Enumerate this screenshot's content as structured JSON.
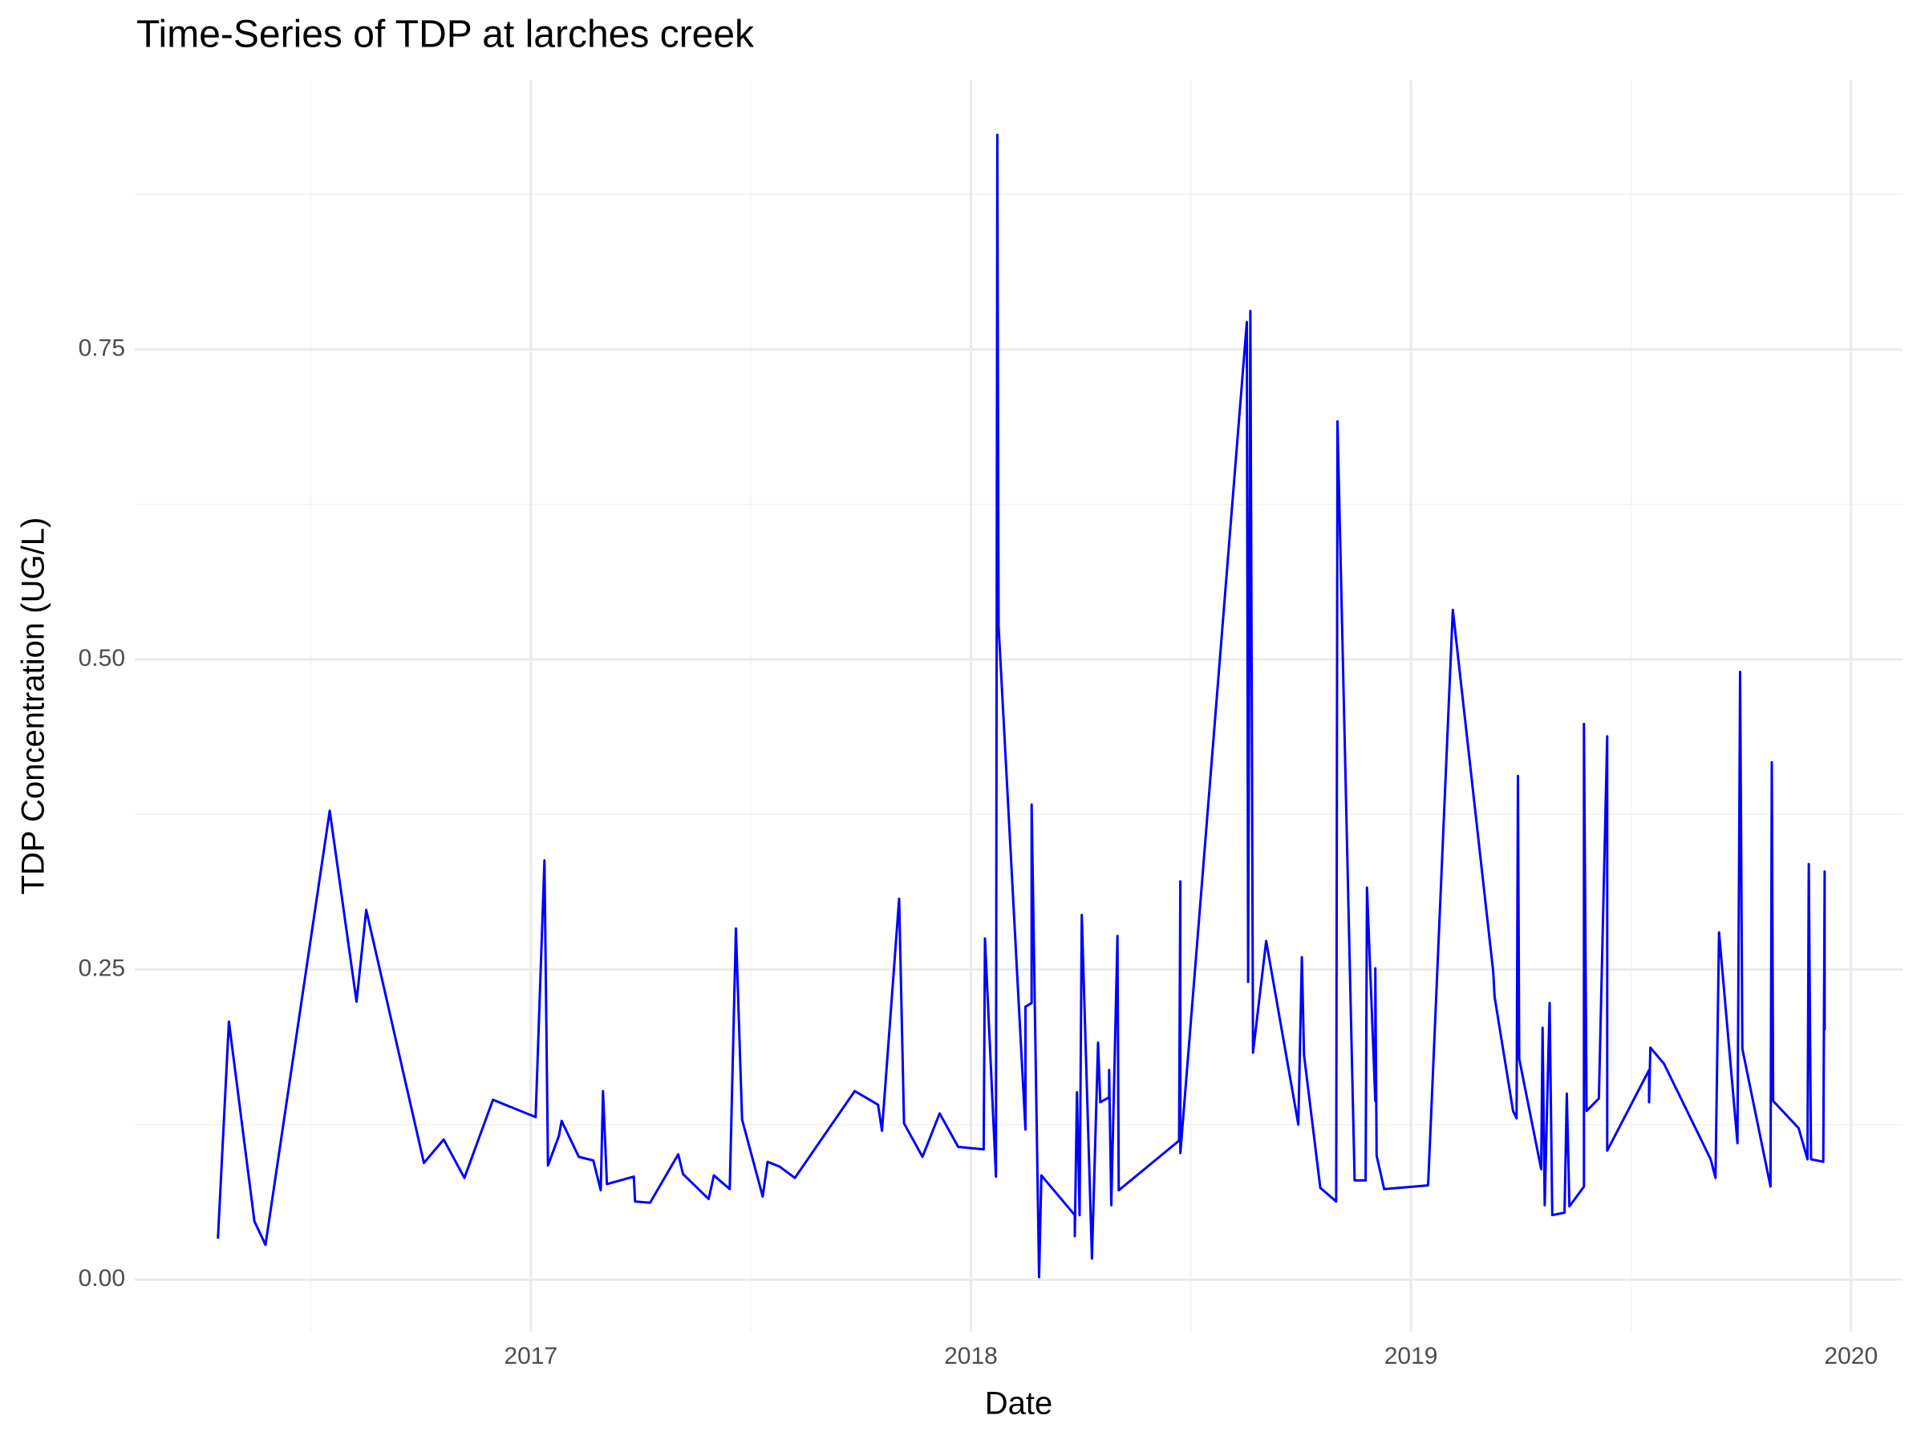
{
  "chart_data": {
    "type": "line",
    "title": "Time-Series of TDP at larches creek",
    "x_label": "Date",
    "y_label": "TDP Concentration (UG/L)",
    "color": "#0000ff",
    "grid": true,
    "xlim": [
      2016.1,
      2020.117
    ],
    "xticks": [
      2017,
      2018,
      2019,
      2020
    ],
    "ylim": [
      -0.042,
      0.967
    ],
    "yticks": [
      {
        "value": 0,
        "label": "0.00"
      },
      {
        "value": 0.25,
        "label": "0.25"
      },
      {
        "value": 0.5,
        "label": "0.50"
      },
      {
        "value": 0.75,
        "label": "0.75"
      }
    ],
    "x": [
      2016.289,
      2016.314,
      2016.372,
      2016.397,
      2016.543,
      2016.604,
      2016.626,
      2016.757,
      2016.802,
      2016.849,
      2016.914,
      2017.011,
      2017.031,
      2017.039,
      2017.064,
      2017.07,
      2017.109,
      2017.142,
      2017.159,
      2017.164,
      2017.173,
      2017.234,
      2017.237,
      2017.271,
      2017.335,
      2017.346,
      2017.404,
      2017.416,
      2017.452,
      2017.466,
      2017.48,
      2017.527,
      2017.538,
      2017.566,
      2017.6,
      2017.736,
      2017.789,
      2017.798,
      2017.837,
      2017.848,
      2017.89,
      2017.929,
      2017.971,
      2018.029,
      2018.032,
      2018.057,
      2018.06,
      2018.063,
      2018.124,
      2018.124,
      2018.138,
      2018.138,
      2018.155,
      2018.16,
      2018.236,
      2018.236,
      2018.241,
      2018.247,
      2018.252,
      2018.275,
      2018.289,
      2018.294,
      2018.314,
      2018.314,
      2018.319,
      2018.333,
      2018.336,
      2018.473,
      2018.476,
      2018.476,
      2018.627,
      2018.63,
      2018.635,
      2018.641,
      2018.671,
      2018.744,
      2018.752,
      2018.757,
      2018.794,
      2018.83,
      2018.833,
      2018.872,
      2018.897,
      2018.9,
      2018.919,
      2018.919,
      2018.922,
      2018.939,
      2019.039,
      2019.095,
      2019.187,
      2019.19,
      2019.232,
      2019.24,
      2019.243,
      2019.246,
      2019.296,
      2019.299,
      2019.304,
      2019.315,
      2019.321,
      2019.349,
      2019.354,
      2019.36,
      2019.393,
      2019.393,
      2019.399,
      2019.427,
      2019.446,
      2019.446,
      2019.541,
      2019.541,
      2019.544,
      2019.575,
      2019.681,
      2019.692,
      2019.7,
      2019.742,
      2019.748,
      2019.753,
      2019.817,
      2019.82,
      2019.823,
      2019.881,
      2019.901,
      2019.904,
      2019.909,
      2019.937,
      2019.94,
      2019.94
    ],
    "values": [
      0.033,
      0.208,
      0.047,
      0.028,
      0.378,
      0.224,
      0.298,
      0.094,
      0.113,
      0.082,
      0.145,
      0.131,
      0.338,
      0.092,
      0.116,
      0.128,
      0.099,
      0.096,
      0.072,
      0.152,
      0.077,
      0.083,
      0.063,
      0.062,
      0.101,
      0.085,
      0.065,
      0.084,
      0.073,
      0.283,
      0.129,
      0.067,
      0.095,
      0.091,
      0.082,
      0.152,
      0.141,
      0.12,
      0.307,
      0.126,
      0.099,
      0.134,
      0.107,
      0.105,
      0.275,
      0.083,
      0.923,
      0.527,
      0.121,
      0.22,
      0.223,
      0.383,
      0.002,
      0.084,
      0.052,
      0.035,
      0.151,
      0.052,
      0.294,
      0.017,
      0.191,
      0.143,
      0.147,
      0.169,
      0.06,
      0.277,
      0.072,
      0.112,
      0.321,
      0.102,
      0.772,
      0.24,
      0.781,
      0.183,
      0.273,
      0.125,
      0.26,
      0.181,
      0.074,
      0.063,
      0.692,
      0.08,
      0.08,
      0.316,
      0.144,
      0.251,
      0.1,
      0.073,
      0.076,
      0.54,
      0.248,
      0.228,
      0.136,
      0.13,
      0.406,
      0.178,
      0.089,
      0.203,
      0.06,
      0.223,
      0.052,
      0.054,
      0.15,
      0.059,
      0.075,
      0.448,
      0.136,
      0.146,
      0.438,
      0.104,
      0.169,
      0.143,
      0.187,
      0.174,
      0.097,
      0.082,
      0.28,
      0.11,
      0.49,
      0.186,
      0.075,
      0.417,
      0.144,
      0.122,
      0.097,
      0.335,
      0.097,
      0.095,
      0.329,
      0.201
    ]
  }
}
